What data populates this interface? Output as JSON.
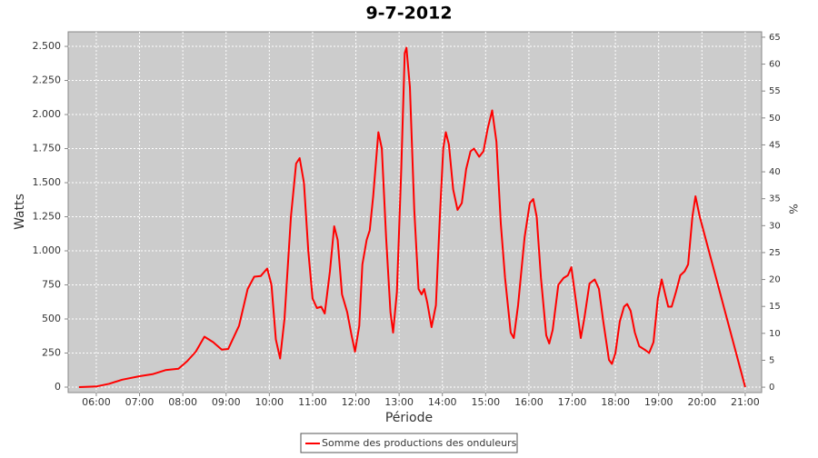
{
  "chart_data": {
    "type": "line",
    "title": "9-7-2012",
    "xlabel": "Période",
    "ylabel": "Watts",
    "y2label": "%",
    "x": [
      5.6,
      6.0,
      6.3,
      6.6,
      7.0,
      7.3,
      7.6,
      7.9,
      8.1,
      8.3,
      8.5,
      8.7,
      8.9,
      9.05,
      9.3,
      9.5,
      9.65,
      9.8,
      9.95,
      10.05,
      10.15,
      10.25,
      10.35,
      10.5,
      10.62,
      10.7,
      10.8,
      10.9,
      11.0,
      11.1,
      11.2,
      11.28,
      11.4,
      11.5,
      11.58,
      11.68,
      11.8,
      11.9,
      11.98,
      12.08,
      12.15,
      12.25,
      12.32,
      12.4,
      12.52,
      12.6,
      12.7,
      12.8,
      12.86,
      12.95,
      13.05,
      13.13,
      13.17,
      13.25,
      13.35,
      13.45,
      13.52,
      13.58,
      13.65,
      13.75,
      13.85,
      13.95,
      14.02,
      14.08,
      14.15,
      14.25,
      14.35,
      14.45,
      14.55,
      14.65,
      14.73,
      14.85,
      14.95,
      15.05,
      15.15,
      15.25,
      15.35,
      15.45,
      15.58,
      15.65,
      15.75,
      15.9,
      16.02,
      16.1,
      16.18,
      16.28,
      16.4,
      16.47,
      16.55,
      16.68,
      16.8,
      16.9,
      16.98,
      17.08,
      17.2,
      17.28,
      17.4,
      17.52,
      17.62,
      17.72,
      17.85,
      17.92,
      18.0,
      18.1,
      18.2,
      18.27,
      18.35,
      18.45,
      18.55,
      18.7,
      18.78,
      18.88,
      18.98,
      19.07,
      19.15,
      19.22,
      19.3,
      19.4,
      19.5,
      19.6,
      19.68,
      19.78,
      19.85,
      19.95,
      21.0
    ],
    "series": [
      {
        "name": "Somme des productions des onduleurs",
        "color": "#ff0000",
        "values": [
          0,
          5,
          25,
          55,
          80,
          95,
          125,
          135,
          190,
          260,
          370,
          330,
          275,
          280,
          450,
          720,
          810,
          815,
          870,
          750,
          350,
          210,
          500,
          1250,
          1640,
          1680,
          1500,
          1000,
          650,
          580,
          590,
          540,
          850,
          1180,
          1080,
          680,
          550,
          380,
          260,
          450,
          900,
          1080,
          1150,
          1400,
          1870,
          1750,
          1100,
          550,
          400,
          700,
          1600,
          2450,
          2490,
          2200,
          1300,
          720,
          680,
          720,
          620,
          440,
          600,
          1300,
          1750,
          1870,
          1780,
          1450,
          1300,
          1350,
          1600,
          1730,
          1750,
          1690,
          1730,
          1900,
          2030,
          1800,
          1200,
          800,
          400,
          360,
          600,
          1100,
          1350,
          1380,
          1250,
          800,
          380,
          320,
          420,
          750,
          800,
          820,
          880,
          650,
          360,
          500,
          760,
          790,
          720,
          480,
          200,
          170,
          250,
          480,
          590,
          610,
          560,
          400,
          300,
          270,
          250,
          330,
          650,
          790,
          680,
          590,
          590,
          700,
          820,
          850,
          900,
          1250,
          1400,
          1250,
          0
        ]
      }
    ],
    "xlim": [
      5.35,
      21.38
    ],
    "xticks": [
      {
        "value": 6,
        "label": "06:00"
      },
      {
        "value": 7,
        "label": "07:00"
      },
      {
        "value": 8,
        "label": "08:00"
      },
      {
        "value": 9,
        "label": "09:00"
      },
      {
        "value": 10,
        "label": "10:00"
      },
      {
        "value": 11,
        "label": "11:00"
      },
      {
        "value": 12,
        "label": "12:00"
      },
      {
        "value": 13,
        "label": "13:00"
      },
      {
        "value": 14,
        "label": "14:00"
      },
      {
        "value": 15,
        "label": "15:00"
      },
      {
        "value": 16,
        "label": "16:00"
      },
      {
        "value": 17,
        "label": "17:00"
      },
      {
        "value": 18,
        "label": "18:00"
      },
      {
        "value": 19,
        "label": "19:00"
      },
      {
        "value": 20,
        "label": "20:00"
      },
      {
        "value": 21,
        "label": "21:00"
      }
    ],
    "ylim": [
      -40,
      2607
    ],
    "yticks": [
      0,
      250,
      500,
      750,
      {
        "value": 1000,
        "label": "1.000"
      },
      {
        "value": 1250,
        "label": "1.250"
      },
      {
        "value": 1500,
        "label": "1.500"
      },
      {
        "value": 1750,
        "label": "1.750"
      },
      {
        "value": 2000,
        "label": "2.000"
      },
      {
        "value": 2250,
        "label": "2.250"
      },
      {
        "value": 2500,
        "label": "2.500"
      }
    ],
    "y2lim": [
      -1,
      66
    ],
    "y2ticks": [
      0,
      5,
      10,
      15,
      20,
      25,
      30,
      35,
      40,
      45,
      50,
      55,
      60,
      65
    ],
    "grid": true
  }
}
